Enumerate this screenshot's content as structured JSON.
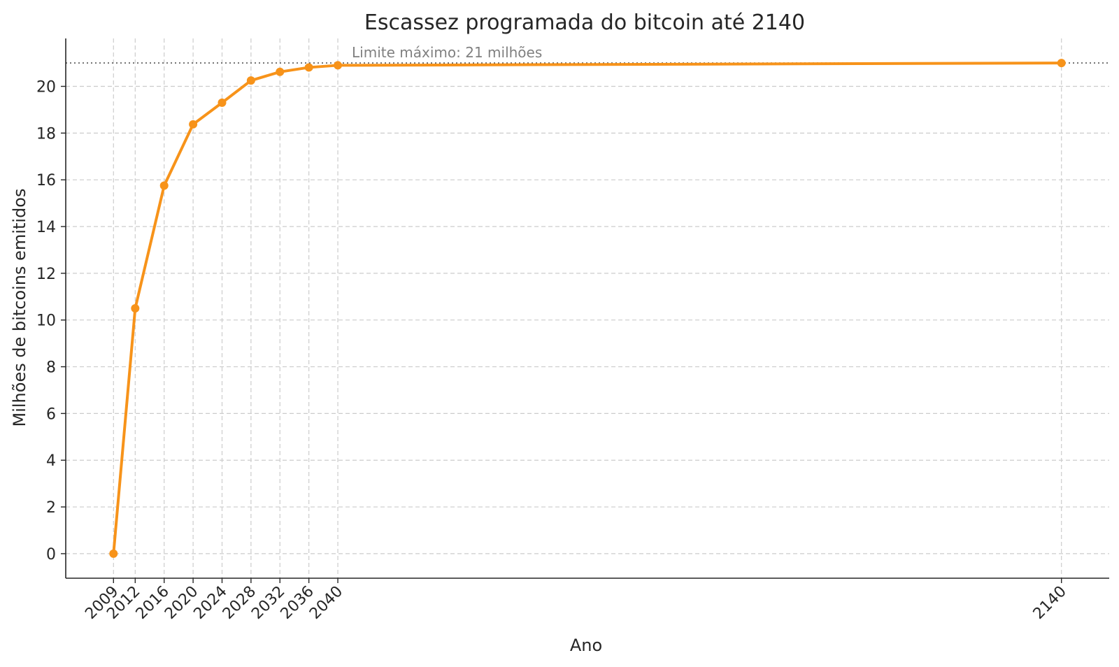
{
  "chart_data": {
    "type": "line",
    "title": "Escassez programada do bitcoin até 2140",
    "xlabel": "Ano",
    "ylabel": "Milhões de bitcoins emitidos",
    "x": [
      2009,
      2012,
      2016,
      2020,
      2024,
      2028,
      2032,
      2036,
      2040,
      2140
    ],
    "x_tick_labels": [
      "2009",
      "2012",
      "2016",
      "2020",
      "2024",
      "2028",
      "2032",
      "2036",
      "2040",
      "2140"
    ],
    "series": [
      {
        "values": [
          0,
          10.5,
          15.75,
          18.375,
          19.3,
          20.25,
          20.62,
          20.81,
          20.9,
          21.0
        ],
        "color": "#f7931a"
      }
    ],
    "y_ticks": [
      0,
      2,
      4,
      6,
      8,
      10,
      12,
      14,
      16,
      18,
      20
    ],
    "ylim": [
      -1.05,
      22.05
    ],
    "xlim": [
      2002.4,
      2146.6
    ],
    "reference_line": {
      "value": 21,
      "label": "Limite máximo: 21 milhões",
      "style": "dotted"
    },
    "grid": true,
    "legend": "none"
  }
}
